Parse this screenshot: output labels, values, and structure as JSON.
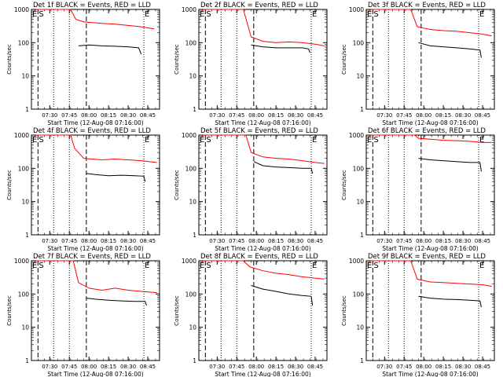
{
  "chart_data": [
    {
      "type": "line",
      "title": "Det 1f BLACK = Events, RED = LLD",
      "ylabel": "Counts/sec",
      "xlabel": "Start Time (12-Aug-08 07:16:00)",
      "yscale": "log",
      "ylim": [
        1,
        1000
      ],
      "xlim": [
        "07:16",
        "08:54"
      ],
      "x_ticks": [
        "07:30",
        "07:45",
        "08:00",
        "08:15",
        "08:30",
        "08:45"
      ],
      "y_ticks": [
        "1",
        "10",
        "100",
        "1000"
      ],
      "marker_labels": [
        "E",
        "S",
        "E"
      ],
      "dashed_lines": [
        "07:21",
        "07:58"
      ],
      "dotted_lines": [
        "07:33",
        "07:45",
        "08:42"
      ],
      "series": [
        {
          "color": "#ff0000",
          "values": [
            [
              "07:18",
              900
            ],
            [
              "07:20",
              1000
            ],
            [
              "07:46",
              1000
            ],
            [
              "07:50",
              500
            ],
            [
              "07:56",
              420
            ],
            [
              "08:10",
              380
            ],
            [
              "08:20",
              360
            ],
            [
              "08:30",
              330
            ],
            [
              "08:40",
              300
            ],
            [
              "08:50",
              260
            ]
          ]
        },
        {
          "color": "#000000",
          "values": [
            [
              "07:52",
              80
            ],
            [
              "08:00",
              85
            ],
            [
              "08:10",
              80
            ],
            [
              "08:20",
              78
            ],
            [
              "08:30",
              75
            ],
            [
              "08:38",
              70
            ],
            [
              "08:40",
              45
            ]
          ]
        }
      ]
    },
    {
      "type": "line",
      "title": "Det 2f BLACK = Events, RED = LLD",
      "ylabel": "Counts/sec",
      "xlabel": "Start Time (12-Aug-08 07:16:00)",
      "yscale": "log",
      "ylim": [
        1,
        1000
      ],
      "xlim": [
        "07:16",
        "08:54"
      ],
      "x_ticks": [
        "07:30",
        "07:45",
        "08:00",
        "08:15",
        "08:30",
        "08:45"
      ],
      "y_ticks": [
        "1",
        "10",
        "100",
        "1000"
      ],
      "marker_labels": [
        "E",
        "S",
        "E"
      ],
      "dashed_lines": [
        "07:21",
        "07:58"
      ],
      "dotted_lines": [
        "07:33",
        "07:45",
        "08:42"
      ],
      "series": [
        {
          "color": "#ff0000",
          "values": [
            [
              "07:18",
              900
            ],
            [
              "07:20",
              1000
            ],
            [
              "07:50",
              1000
            ],
            [
              "07:56",
              150
            ],
            [
              "08:05",
              110
            ],
            [
              "08:15",
              100
            ],
            [
              "08:25",
              105
            ],
            [
              "08:35",
              100
            ],
            [
              "08:45",
              90
            ],
            [
              "08:52",
              80
            ]
          ]
        },
        {
          "color": "#000000",
          "values": [
            [
              "07:56",
              85
            ],
            [
              "08:05",
              75
            ],
            [
              "08:15",
              70
            ],
            [
              "08:25",
              70
            ],
            [
              "08:35",
              70
            ],
            [
              "08:40",
              65
            ],
            [
              "08:41",
              50
            ]
          ]
        }
      ]
    },
    {
      "type": "line",
      "title": "Det 3f BLACK = Events, RED = LLD",
      "ylabel": "Counts/sec",
      "xlabel": "Start Time (12-Aug-08 07:16:00)",
      "yscale": "log",
      "ylim": [
        1,
        1000
      ],
      "xlim": [
        "07:16",
        "08:54"
      ],
      "x_ticks": [
        "07:30",
        "07:45",
        "08:00",
        "08:15",
        "08:30",
        "08:45"
      ],
      "y_ticks": [
        "1",
        "10",
        "100",
        "1000"
      ],
      "marker_labels": [
        "E",
        "S",
        "E"
      ],
      "dashed_lines": [
        "07:21",
        "07:58"
      ],
      "dotted_lines": [
        "07:33",
        "07:45",
        "08:42"
      ],
      "series": [
        {
          "color": "#ff0000",
          "values": [
            [
              "07:18",
              900
            ],
            [
              "07:20",
              1000
            ],
            [
              "07:50",
              1000
            ],
            [
              "07:55",
              300
            ],
            [
              "08:05",
              250
            ],
            [
              "08:15",
              230
            ],
            [
              "08:25",
              220
            ],
            [
              "08:35",
              200
            ],
            [
              "08:45",
              180
            ],
            [
              "08:52",
              160
            ]
          ]
        },
        {
          "color": "#000000",
          "values": [
            [
              "07:56",
              100
            ],
            [
              "08:05",
              80
            ],
            [
              "08:15",
              75
            ],
            [
              "08:25",
              70
            ],
            [
              "08:35",
              65
            ],
            [
              "08:43",
              60
            ],
            [
              "08:44",
              35
            ]
          ]
        }
      ]
    },
    {
      "type": "line",
      "title": "Det 4f BLACK = Events, RED = LLD",
      "ylabel": "Counts/sec",
      "xlabel": "Start Time (12-Aug-08 07:16:00)",
      "yscale": "log",
      "ylim": [
        1,
        1000
      ],
      "xlim": [
        "07:16",
        "08:54"
      ],
      "x_ticks": [
        "07:30",
        "07:45",
        "08:00",
        "08:15",
        "08:30",
        "08:45"
      ],
      "y_ticks": [
        "1",
        "10",
        "100",
        "1000"
      ],
      "marker_labels": [
        "E",
        "S",
        "E"
      ],
      "dashed_lines": [
        "07:21",
        "07:58"
      ],
      "dotted_lines": [
        "07:33",
        "07:45",
        "08:42"
      ],
      "series": [
        {
          "color": "#ff0000",
          "values": [
            [
              "07:18",
              900
            ],
            [
              "07:20",
              1000
            ],
            [
              "07:46",
              1000
            ],
            [
              "07:49",
              400
            ],
            [
              "07:56",
              200
            ],
            [
              "08:10",
              180
            ],
            [
              "08:20",
              190
            ],
            [
              "08:30",
              180
            ],
            [
              "08:40",
              170
            ],
            [
              "08:52",
              150
            ]
          ]
        },
        {
          "color": "#000000",
          "values": [
            [
              "07:58",
              70
            ],
            [
              "08:05",
              65
            ],
            [
              "08:15",
              60
            ],
            [
              "08:25",
              62
            ],
            [
              "08:35",
              60
            ],
            [
              "08:42",
              58
            ],
            [
              "08:43",
              40
            ]
          ]
        }
      ]
    },
    {
      "type": "line",
      "title": "Det 5f BLACK = Events, RED = LLD",
      "ylabel": "Counts/sec",
      "xlabel": "Start Time (12-Aug-08 07:16:00)",
      "yscale": "log",
      "ylim": [
        1,
        1000
      ],
      "xlim": [
        "07:16",
        "08:54"
      ],
      "x_ticks": [
        "07:30",
        "07:45",
        "08:00",
        "08:15",
        "08:30",
        "08:45"
      ],
      "y_ticks": [
        "1",
        "10",
        "100",
        "1000"
      ],
      "marker_labels": [
        "E",
        "S",
        "E"
      ],
      "dashed_lines": [
        "07:21",
        "07:58"
      ],
      "dotted_lines": [
        "07:33",
        "07:45",
        "08:42"
      ],
      "series": [
        {
          "color": "#ff0000",
          "values": [
            [
              "07:18",
              900
            ],
            [
              "07:20",
              1000
            ],
            [
              "07:52",
              1000
            ],
            [
              "07:56",
              300
            ],
            [
              "08:05",
              220
            ],
            [
              "08:15",
              200
            ],
            [
              "08:25",
              190
            ],
            [
              "08:35",
              170
            ],
            [
              "08:45",
              150
            ],
            [
              "08:52",
              140
            ]
          ]
        },
        {
          "color": "#000000",
          "values": [
            [
              "07:58",
              160
            ],
            [
              "08:05",
              120
            ],
            [
              "08:15",
              110
            ],
            [
              "08:25",
              105
            ],
            [
              "08:35",
              100
            ],
            [
              "08:42",
              100
            ],
            [
              "08:43",
              70
            ]
          ]
        }
      ]
    },
    {
      "type": "line",
      "title": "Det 6f BLACK = Events, RED = LLD",
      "ylabel": "Counts/sec",
      "xlabel": "Start Time (12-Aug-08 07:16:00)",
      "yscale": "log",
      "ylim": [
        1,
        1000
      ],
      "xlim": [
        "07:16",
        "08:54"
      ],
      "x_ticks": [
        "07:30",
        "07:45",
        "08:00",
        "08:15",
        "08:30",
        "08:45"
      ],
      "y_ticks": [
        "1",
        "10",
        "100",
        "1000"
      ],
      "marker_labels": [
        "E",
        "S",
        "E"
      ],
      "dashed_lines": [
        "07:21",
        "07:58"
      ],
      "dotted_lines": [
        "07:33",
        "07:45",
        "08:42"
      ],
      "series": [
        {
          "color": "#ff0000",
          "values": [
            [
              "07:18",
              900
            ],
            [
              "07:20",
              1000
            ],
            [
              "07:53",
              1000
            ],
            [
              "07:56",
              800
            ],
            [
              "08:05",
              750
            ],
            [
              "08:15",
              700
            ],
            [
              "08:25",
              680
            ],
            [
              "08:35",
              650
            ],
            [
              "08:45",
              600
            ],
            [
              "08:52",
              600
            ]
          ]
        },
        {
          "color": "#000000",
          "values": [
            [
              "07:56",
              200
            ],
            [
              "08:05",
              180
            ],
            [
              "08:15",
              170
            ],
            [
              "08:25",
              160
            ],
            [
              "08:35",
              150
            ],
            [
              "08:43",
              150
            ],
            [
              "08:44",
              80
            ]
          ]
        }
      ]
    },
    {
      "type": "line",
      "title": "Det 7f BLACK = Events, RED = LLD",
      "ylabel": "Counts/sec",
      "xlabel": "Start Time (12-Aug-08 07:16:00)",
      "yscale": "log",
      "ylim": [
        1,
        1000
      ],
      "xlim": [
        "07:16",
        "08:54"
      ],
      "x_ticks": [
        "07:30",
        "07:45",
        "08:00",
        "08:15",
        "08:30",
        "08:45"
      ],
      "y_ticks": [
        "1",
        "10",
        "100",
        "1000"
      ],
      "marker_labels": [
        "E",
        "S",
        "E"
      ],
      "dashed_lines": [
        "07:21",
        "07:58"
      ],
      "dotted_lines": [
        "07:33",
        "07:45",
        "08:42"
      ],
      "series": [
        {
          "color": "#ff0000",
          "values": [
            [
              "07:18",
              900
            ],
            [
              "07:20",
              1000
            ],
            [
              "07:48",
              1000
            ],
            [
              "07:52",
              220
            ],
            [
              "08:00",
              150
            ],
            [
              "08:10",
              130
            ],
            [
              "08:20",
              150
            ],
            [
              "08:30",
              130
            ],
            [
              "08:40",
              120
            ],
            [
              "08:52",
              110
            ]
          ]
        },
        {
          "color": "#000000",
          "values": [
            [
              "07:58",
              75
            ],
            [
              "08:05",
              70
            ],
            [
              "08:15",
              65
            ],
            [
              "08:25",
              62
            ],
            [
              "08:35",
              60
            ],
            [
              "08:43",
              60
            ],
            [
              "08:44",
              45
            ]
          ]
        }
      ]
    },
    {
      "type": "line",
      "title": "Det 8f BLACK = Events, RED = LLD",
      "ylabel": "Counts/sec",
      "xlabel": "Start Time (12-Aug-08 07:16:00)",
      "yscale": "log",
      "ylim": [
        1,
        1000
      ],
      "xlim": [
        "07:16",
        "08:54"
      ],
      "x_ticks": [
        "07:30",
        "07:45",
        "08:00",
        "08:15",
        "08:30",
        "08:45"
      ],
      "y_ticks": [
        "1",
        "10",
        "100",
        "1000"
      ],
      "marker_labels": [
        "E",
        "S",
        "E"
      ],
      "dashed_lines": [
        "07:21",
        "07:58"
      ],
      "dotted_lines": [
        "07:33",
        "07:45",
        "08:42"
      ],
      "series": [
        {
          "color": "#ff0000",
          "values": [
            [
              "07:18",
              900
            ],
            [
              "07:20",
              1000
            ],
            [
              "07:50",
              1000
            ],
            [
              "07:55",
              650
            ],
            [
              "08:05",
              500
            ],
            [
              "08:15",
              420
            ],
            [
              "08:25",
              380
            ],
            [
              "08:35",
              330
            ],
            [
              "08:45",
              300
            ],
            [
              "08:52",
              280
            ]
          ]
        },
        {
          "color": "#000000",
          "values": [
            [
              "07:56",
              180
            ],
            [
              "08:05",
              140
            ],
            [
              "08:15",
              120
            ],
            [
              "08:25",
              100
            ],
            [
              "08:35",
              90
            ],
            [
              "08:42",
              85
            ],
            [
              "08:43",
              45
            ]
          ]
        }
      ]
    },
    {
      "type": "line",
      "title": "Det 9f BLACK = Events, RED = LLD",
      "ylabel": "Counts/sec",
      "xlabel": "Start Time (12-Aug-08 07:16:00)",
      "yscale": "log",
      "ylim": [
        1,
        1000
      ],
      "xlim": [
        "07:16",
        "08:54"
      ],
      "x_ticks": [
        "07:30",
        "07:45",
        "08:00",
        "08:15",
        "08:30",
        "08:45"
      ],
      "y_ticks": [
        "1",
        "10",
        "100",
        "1000"
      ],
      "marker_labels": [
        "E",
        "S",
        "E"
      ],
      "dashed_lines": [
        "07:21",
        "07:58"
      ],
      "dotted_lines": [
        "07:33",
        "07:45",
        "08:42"
      ],
      "series": [
        {
          "color": "#ff0000",
          "values": [
            [
              "07:18",
              900
            ],
            [
              "07:20",
              1000
            ],
            [
              "07:50",
              1000
            ],
            [
              "07:55",
              280
            ],
            [
              "08:05",
              230
            ],
            [
              "08:15",
              220
            ],
            [
              "08:25",
              210
            ],
            [
              "08:35",
              200
            ],
            [
              "08:45",
              190
            ],
            [
              "08:52",
              170
            ]
          ]
        },
        {
          "color": "#000000",
          "values": [
            [
              "07:56",
              85
            ],
            [
              "08:05",
              75
            ],
            [
              "08:15",
              70
            ],
            [
              "08:25",
              68
            ],
            [
              "08:35",
              65
            ],
            [
              "08:43",
              62
            ],
            [
              "08:44",
              40
            ]
          ]
        }
      ]
    }
  ]
}
